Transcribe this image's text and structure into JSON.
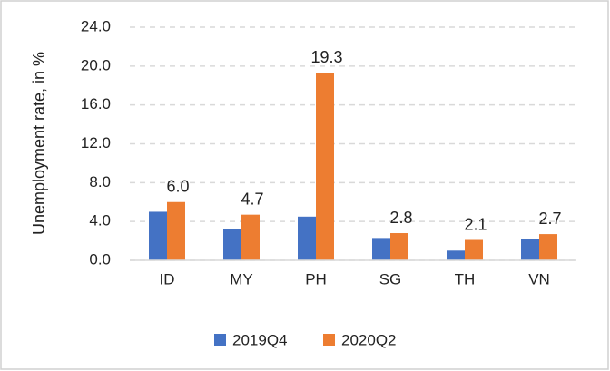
{
  "chart_data": {
    "type": "bar",
    "ylabel": "Unemployment  rate, in %",
    "categories": [
      "ID",
      "MY",
      "PH",
      "SG",
      "TH",
      "VN"
    ],
    "series": [
      {
        "name": "2019Q4",
        "color": "#4472c4",
        "values": [
          5.0,
          3.2,
          4.5,
          2.3,
          1.0,
          2.2
        ]
      },
      {
        "name": "2020Q2",
        "color": "#ed7d31",
        "values": [
          6.0,
          4.7,
          19.3,
          2.8,
          2.1,
          2.7
        ],
        "value_labels": [
          "6.0",
          "4.7",
          "19.3",
          "2.8",
          "2.1",
          "2.7"
        ]
      }
    ],
    "ylim": [
      0,
      24
    ],
    "yticks": [
      {
        "value": 0,
        "label": "0.0"
      },
      {
        "value": 4,
        "label": "4.0"
      },
      {
        "value": 8,
        "label": "8.0"
      },
      {
        "value": 12,
        "label": "12.0"
      },
      {
        "value": 16,
        "label": "16.0"
      },
      {
        "value": 20,
        "label": "20.0"
      },
      {
        "value": 24,
        "label": "24.0"
      }
    ],
    "grid": true,
    "legend": "bottom"
  }
}
